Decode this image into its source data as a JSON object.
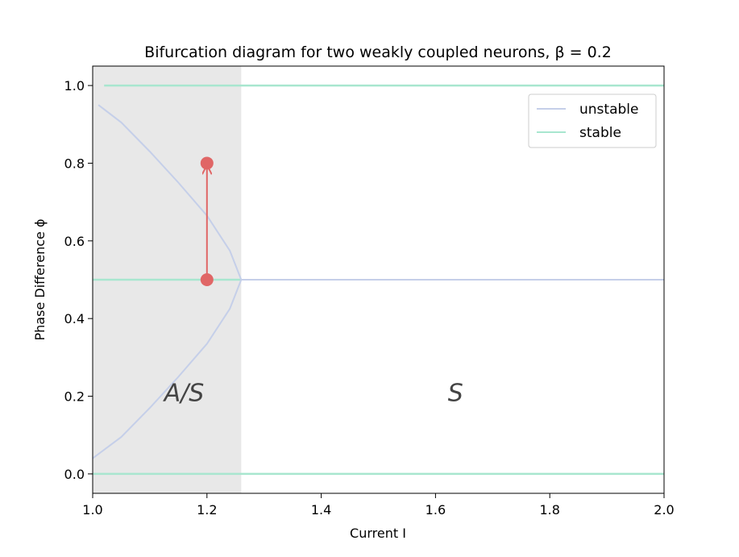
{
  "chart_data": {
    "type": "line",
    "title": "Bifurcation diagram for two weakly coupled neurons, β = 0.2",
    "xlabel": "Current I",
    "ylabel": "Phase Difference ϕ",
    "xlim": [
      1.0,
      2.0
    ],
    "ylim": [
      -0.05,
      1.05
    ],
    "xticks": [
      "1.0",
      "1.2",
      "1.4",
      "1.6",
      "1.8",
      "2.0"
    ],
    "yticks": [
      "0.0",
      "0.2",
      "0.4",
      "0.6",
      "0.8",
      "1.0"
    ],
    "grid": false,
    "legend": {
      "position": "top-right",
      "entries": [
        "unstable",
        "stable"
      ]
    },
    "shaded_region": {
      "x": [
        1.0,
        1.26
      ],
      "color": "#e8e8e8"
    },
    "region_labels": [
      {
        "text": "A/S",
        "x": 1.16,
        "y": 0.21
      },
      {
        "text": "S",
        "x": 1.635,
        "y": 0.21
      }
    ],
    "series": [
      {
        "name": "unstable",
        "color": "#c5cfe9",
        "points": [
          [
            1.26,
            0.5
          ],
          [
            2.0,
            0.5
          ],
          [
            1.01,
            0.95
          ],
          [
            1.05,
            0.905
          ],
          [
            1.1,
            0.83
          ],
          [
            1.15,
            0.75
          ],
          [
            1.2,
            0.665
          ],
          [
            1.24,
            0.575
          ],
          [
            1.26,
            0.5
          ],
          [
            1.24,
            0.425
          ],
          [
            1.2,
            0.335
          ],
          [
            1.15,
            0.25
          ],
          [
            1.1,
            0.17
          ],
          [
            1.05,
            0.095
          ],
          [
            1.0,
            0.04
          ]
        ]
      },
      {
        "name": "stable",
        "color": "#a8e6cf",
        "points": [
          [
            1.02,
            1.0
          ],
          [
            2.0,
            1.0
          ],
          [
            1.0,
            0.0
          ],
          [
            2.0,
            0.0
          ],
          [
            1.0,
            0.5
          ],
          [
            1.26,
            0.5
          ]
        ]
      }
    ],
    "annotation": {
      "color": "#e06666",
      "start": [
        1.2,
        0.5
      ],
      "end": [
        1.2,
        0.8
      ]
    }
  }
}
